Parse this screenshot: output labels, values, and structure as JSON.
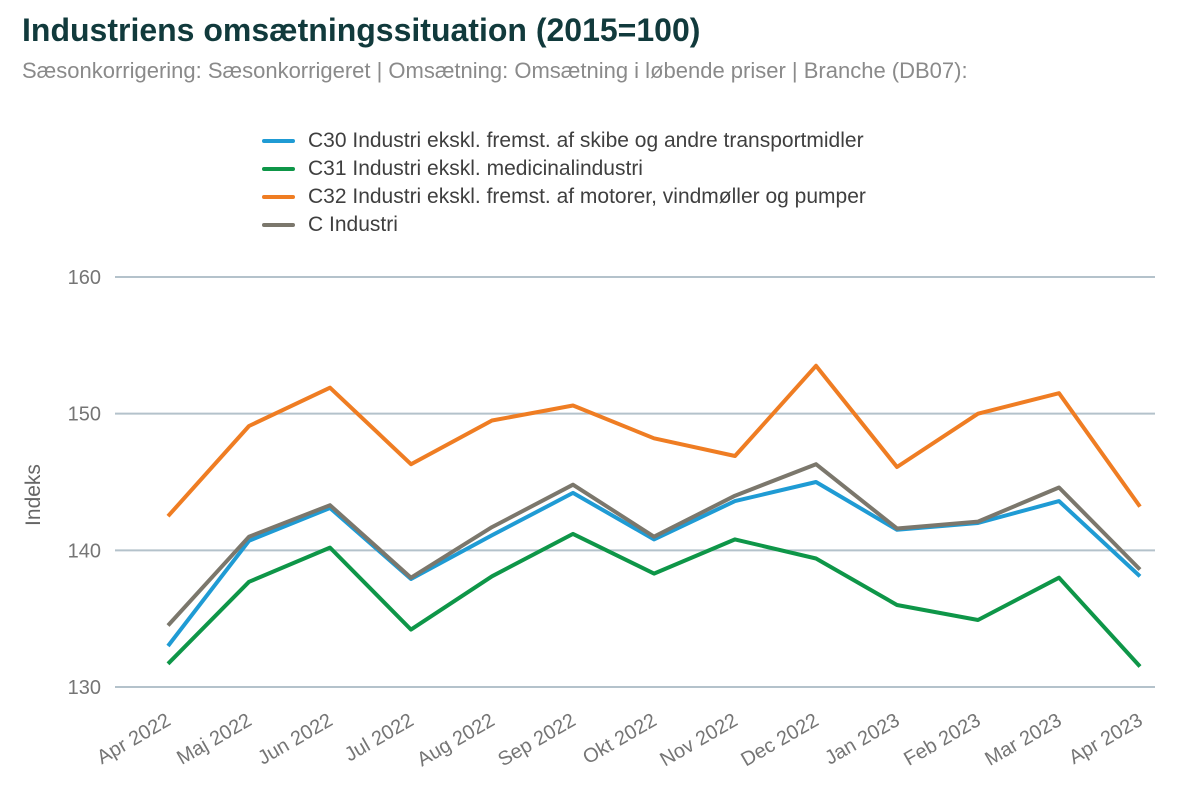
{
  "header": {
    "title": "Industriens omsætningssituation (2015=100)",
    "subtitle": "Sæsonkorrigering: Sæsonkorrigeret | Omsætning: Omsætning i løbende priser | Branche (DB07):"
  },
  "colors": {
    "title_text": "#113a3c",
    "subtitle_text": "#8a8a8a",
    "legend_text": "#3f3f3f",
    "axis_text": "#757575",
    "gridline": "#b4c2cb",
    "background": "#ffffff",
    "series_c30_blue": "#1f9bd4",
    "series_c31_green": "#0e9648",
    "series_c32_orange": "#ef7d23",
    "series_c_gray": "#7b776c"
  },
  "chart_data": {
    "type": "line",
    "title": "Industriens omsætningssituation (2015=100)",
    "xlabel": "",
    "ylabel": "Indeks",
    "ylim": [
      128,
      162
    ],
    "yticks": [
      130,
      140,
      150,
      160
    ],
    "grid": "horizontal",
    "legend_position": "top-left",
    "categories": [
      "Apr 2022",
      "Maj 2022",
      "Jun 2022",
      "Jul 2022",
      "Aug 2022",
      "Sep 2022",
      "Okt 2022",
      "Nov 2022",
      "Dec 2022",
      "Jan 2023",
      "Feb 2023",
      "Mar 2023",
      "Apr 2023"
    ],
    "series": [
      {
        "name": "C30 Industri ekskl. fremst. af skibe og andre transportmidler",
        "slug": "c30",
        "color": "#1f9bd4",
        "values": [
          133.0,
          140.7,
          143.1,
          137.9,
          141.1,
          144.2,
          140.8,
          143.6,
          145.0,
          141.5,
          142.0,
          143.6,
          138.1
        ]
      },
      {
        "name": "C31 Industri ekskl. medicinalindustri",
        "slug": "c31",
        "color": "#0e9648",
        "values": [
          131.7,
          137.7,
          140.2,
          134.2,
          138.1,
          141.2,
          138.3,
          140.8,
          139.4,
          136.0,
          134.9,
          138.0,
          131.5
        ]
      },
      {
        "name": "C32 Industri ekskl. fremst. af motorer, vindmøller og pumper",
        "slug": "c32",
        "color": "#ef7d23",
        "values": [
          142.5,
          149.1,
          151.9,
          146.3,
          149.5,
          150.6,
          148.2,
          146.9,
          153.5,
          146.1,
          150.0,
          151.5,
          143.2
        ]
      },
      {
        "name": "C Industri",
        "slug": "c",
        "color": "#7b776c",
        "values": [
          134.5,
          141.0,
          143.3,
          138.0,
          141.7,
          144.8,
          141.0,
          144.0,
          146.3,
          141.6,
          142.1,
          144.6,
          138.6
        ]
      }
    ]
  }
}
